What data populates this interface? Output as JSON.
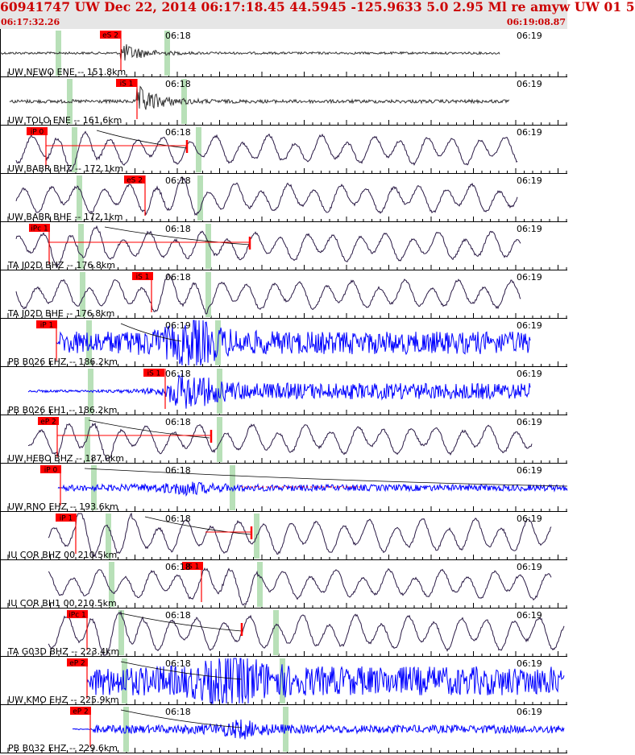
{
  "header": {
    "title": "60941747 UW Dec 22, 2014 06:17:18.45   44.5945 -125.9633  5.0 2.95 Ml re amyw UW 01   5",
    "start_time": "06:17:32.26",
    "end_time": "06:19:08.87"
  },
  "colors": {
    "header_bg": "#e6e6e6",
    "header_text": "#cc0000",
    "pick": "#ff0000",
    "phase_band": "#b8e0b8",
    "trace_dark": "#2a1a45",
    "trace_blue": "#0000ff",
    "trace_gray": "#333333"
  },
  "chart_data": {
    "type": "seismogram",
    "x_range": [
      "06:17:32.26",
      "06:19:08.87"
    ],
    "traces": [
      {
        "label": "UW NEWO ENE -- 151.8km",
        "pick": "eS 2",
        "time_mark": "06:18",
        "time_mark_right": "06:19",
        "color": "gray"
      },
      {
        "label": "UW TOLO ENE -- 161.6km",
        "pick": "iS 1",
        "time_mark": "06:18",
        "time_mark_right": "06:19",
        "color": "gray"
      },
      {
        "label": "UW BABR BHZ -- 172.1km",
        "pick": "iP 0",
        "time_mark": "06:18",
        "time_mark_right": "06:19",
        "color": "dark"
      },
      {
        "label": "UW BABR BHE -- 172.1km",
        "pick": "eS 2",
        "time_mark": "06:18",
        "time_mark_right": "06:19",
        "color": "dark"
      },
      {
        "label": "TA J02D BHZ -- 176.8km",
        "pick": "iPc 1",
        "time_mark": "06:18",
        "time_mark_right": "06:19",
        "color": "dark"
      },
      {
        "label": "TA J02D BHE -- 176.8km",
        "pick": "iS 1",
        "time_mark": "06:18",
        "time_mark_right": "06:19",
        "color": "dark"
      },
      {
        "label": "PB B026 EHZ -- 186.2km",
        "pick": "iP 1",
        "time_mark": "06:19",
        "time_mark_right": "06:19",
        "color": "blue"
      },
      {
        "label": "PB B026 EH1 -- 186.2km",
        "pick": "iS 1",
        "time_mark": "06:18",
        "time_mark_right": "06:19",
        "color": "blue"
      },
      {
        "label": "UW HEBO BHZ -- 187.0km",
        "pick": "eP 2",
        "time_mark": "06:18",
        "time_mark_right": "06:19",
        "color": "dark"
      },
      {
        "label": "UW RNO EHZ -- 193.6km",
        "pick": "iP 0",
        "time_mark": "06:18",
        "time_mark_right": "06:19",
        "color": "blue"
      },
      {
        "label": "IU COR BHZ 00 210.5km",
        "pick": "iP 1",
        "time_mark": "06:18",
        "time_mark_right": "06:19",
        "color": "dark"
      },
      {
        "label": "IU COR BH1 00 210.5km",
        "pick": "iS 1",
        "time_mark": "06:18",
        "time_mark_right": "06:19",
        "color": "dark"
      },
      {
        "label": "TA G03D BHZ -- 223.4km",
        "pick": "iPc 1",
        "time_mark": "06:18",
        "time_mark_right": "06:19",
        "color": "dark"
      },
      {
        "label": "UW KMO EHZ -- 225.9km",
        "pick": "eP 2",
        "time_mark": "06:18",
        "time_mark_right": "06:19",
        "color": "blue"
      },
      {
        "label": "PB B032 EHZ -- 229.6km",
        "pick": "eP 2",
        "time_mark": "06:18",
        "time_mark_right": "06:19",
        "color": "blue"
      }
    ]
  }
}
